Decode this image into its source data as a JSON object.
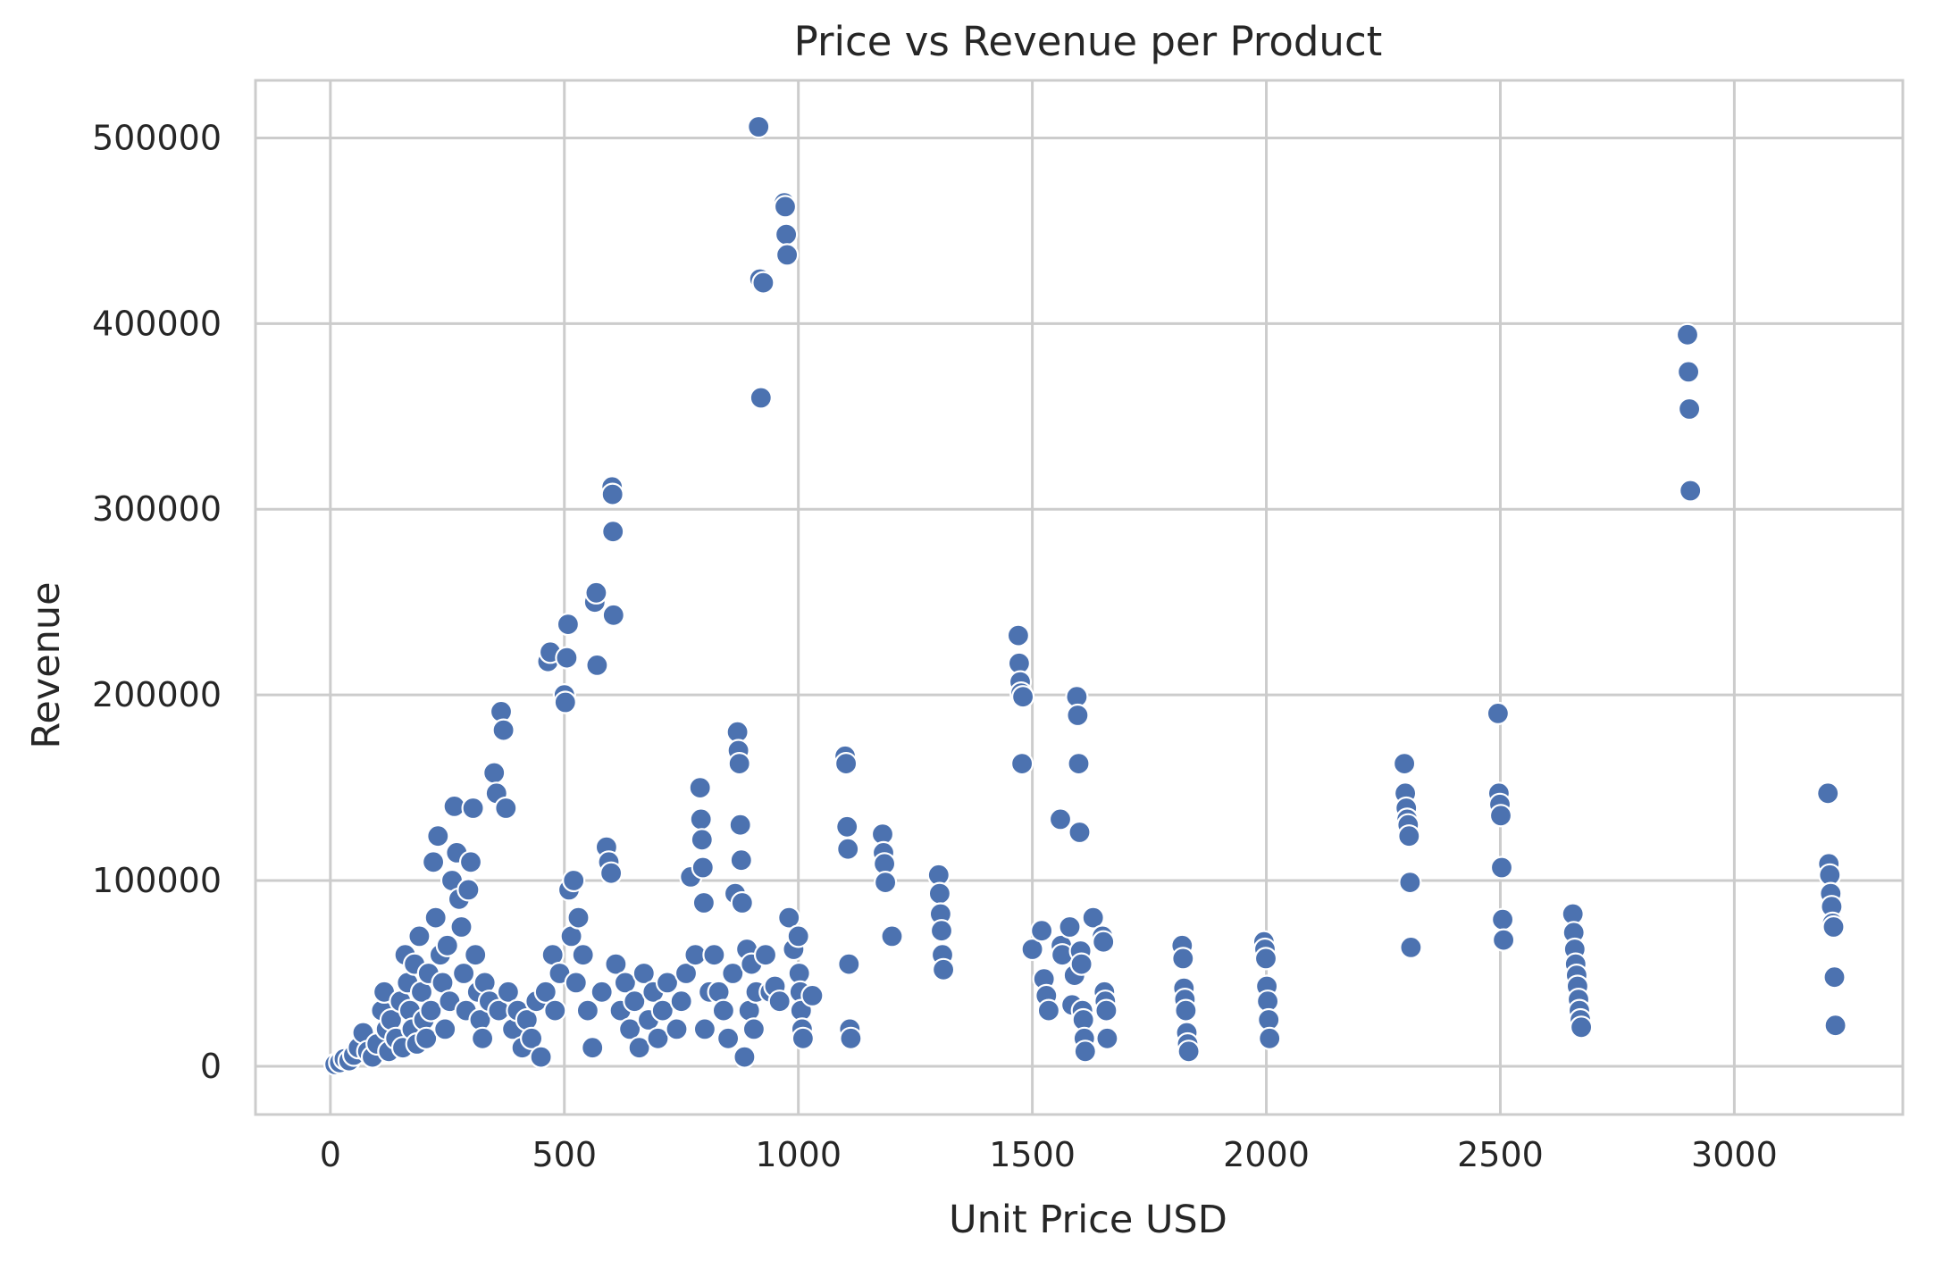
{
  "chart_data": {
    "type": "scatter",
    "title": "Price vs Revenue per Product",
    "xlabel": "Unit Price USD",
    "ylabel": "Revenue",
    "xlim": [
      -160,
      3360
    ],
    "ylim": [
      -26000,
      531000
    ],
    "xticks": [
      0,
      500,
      1000,
      1500,
      2000,
      2500,
      3000
    ],
    "yticks": [
      0,
      100000,
      200000,
      300000,
      400000,
      500000
    ],
    "xtick_labels": [
      "0",
      "500",
      "1000",
      "1500",
      "2000",
      "2500",
      "3000"
    ],
    "ytick_labels": [
      "0",
      "100000",
      "200000",
      "300000",
      "400000",
      "500000"
    ],
    "grid": true,
    "legend": "none",
    "point_color": "#4c72b0",
    "points": [
      [
        10,
        1000
      ],
      [
        20,
        2000
      ],
      [
        30,
        4000
      ],
      [
        40,
        3000
      ],
      [
        50,
        6000
      ],
      [
        60,
        10000
      ],
      [
        70,
        18000
      ],
      [
        80,
        8000
      ],
      [
        90,
        5000
      ],
      [
        100,
        12000
      ],
      [
        110,
        30000
      ],
      [
        115,
        40000
      ],
      [
        120,
        20000
      ],
      [
        125,
        8000
      ],
      [
        130,
        25000
      ],
      [
        140,
        15000
      ],
      [
        150,
        35000
      ],
      [
        155,
        10000
      ],
      [
        160,
        60000
      ],
      [
        165,
        45000
      ],
      [
        170,
        30000
      ],
      [
        175,
        20000
      ],
      [
        180,
        55000
      ],
      [
        185,
        12000
      ],
      [
        190,
        70000
      ],
      [
        195,
        40000
      ],
      [
        200,
        25000
      ],
      [
        205,
        15000
      ],
      [
        210,
        50000
      ],
      [
        215,
        30000
      ],
      [
        220,
        110000
      ],
      [
        225,
        80000
      ],
      [
        230,
        124000
      ],
      [
        235,
        60000
      ],
      [
        240,
        45000
      ],
      [
        245,
        20000
      ],
      [
        250,
        65000
      ],
      [
        255,
        35000
      ],
      [
        260,
        100000
      ],
      [
        265,
        140000
      ],
      [
        270,
        115000
      ],
      [
        275,
        90000
      ],
      [
        280,
        75000
      ],
      [
        285,
        50000
      ],
      [
        290,
        30000
      ],
      [
        295,
        95000
      ],
      [
        300,
        110000
      ],
      [
        305,
        139000
      ],
      [
        310,
        60000
      ],
      [
        315,
        40000
      ],
      [
        320,
        25000
      ],
      [
        325,
        15000
      ],
      [
        330,
        45000
      ],
      [
        340,
        35000
      ],
      [
        350,
        158000
      ],
      [
        355,
        147000
      ],
      [
        360,
        30000
      ],
      [
        365,
        191000
      ],
      [
        370,
        181000
      ],
      [
        375,
        139000
      ],
      [
        380,
        40000
      ],
      [
        390,
        20000
      ],
      [
        400,
        30000
      ],
      [
        410,
        10000
      ],
      [
        420,
        25000
      ],
      [
        430,
        15000
      ],
      [
        440,
        35000
      ],
      [
        450,
        5000
      ],
      [
        460,
        40000
      ],
      [
        465,
        218000
      ],
      [
        470,
        223000
      ],
      [
        475,
        60000
      ],
      [
        480,
        30000
      ],
      [
        490,
        50000
      ],
      [
        500,
        200000
      ],
      [
        502,
        196000
      ],
      [
        505,
        220000
      ],
      [
        508,
        238000
      ],
      [
        510,
        95000
      ],
      [
        515,
        70000
      ],
      [
        520,
        100000
      ],
      [
        525,
        45000
      ],
      [
        530,
        80000
      ],
      [
        540,
        60000
      ],
      [
        550,
        30000
      ],
      [
        560,
        10000
      ],
      [
        565,
        250000
      ],
      [
        568,
        255000
      ],
      [
        570,
        216000
      ],
      [
        580,
        40000
      ],
      [
        590,
        118000
      ],
      [
        595,
        110000
      ],
      [
        600,
        104000
      ],
      [
        602,
        312000
      ],
      [
        603,
        308000
      ],
      [
        604,
        288000
      ],
      [
        605,
        243000
      ],
      [
        610,
        55000
      ],
      [
        620,
        30000
      ],
      [
        630,
        45000
      ],
      [
        640,
        20000
      ],
      [
        650,
        35000
      ],
      [
        660,
        10000
      ],
      [
        670,
        50000
      ],
      [
        680,
        25000
      ],
      [
        690,
        40000
      ],
      [
        700,
        15000
      ],
      [
        710,
        30000
      ],
      [
        720,
        45000
      ],
      [
        740,
        20000
      ],
      [
        750,
        35000
      ],
      [
        760,
        50000
      ],
      [
        770,
        102000
      ],
      [
        780,
        60000
      ],
      [
        790,
        150000
      ],
      [
        792,
        133000
      ],
      [
        794,
        122000
      ],
      [
        796,
        107000
      ],
      [
        798,
        88000
      ],
      [
        800,
        20000
      ],
      [
        810,
        40000
      ],
      [
        820,
        60000
      ],
      [
        830,
        40000
      ],
      [
        840,
        30000
      ],
      [
        850,
        15000
      ],
      [
        860,
        50000
      ],
      [
        865,
        93000
      ],
      [
        870,
        180000
      ],
      [
        872,
        170000
      ],
      [
        874,
        163000
      ],
      [
        876,
        130000
      ],
      [
        878,
        111000
      ],
      [
        880,
        88000
      ],
      [
        885,
        5000
      ],
      [
        890,
        63000
      ],
      [
        895,
        30000
      ],
      [
        900,
        55000
      ],
      [
        905,
        20000
      ],
      [
        910,
        40000
      ],
      [
        915,
        506000
      ],
      [
        918,
        424000
      ],
      [
        920,
        360000
      ],
      [
        925,
        422000
      ],
      [
        930,
        60000
      ],
      [
        940,
        40000
      ],
      [
        950,
        43000
      ],
      [
        960,
        35000
      ],
      [
        970,
        465000
      ],
      [
        972,
        463000
      ],
      [
        974,
        448000
      ],
      [
        976,
        437000
      ],
      [
        980,
        80000
      ],
      [
        990,
        63000
      ],
      [
        1000,
        70000
      ],
      [
        1002,
        50000
      ],
      [
        1004,
        40000
      ],
      [
        1006,
        30000
      ],
      [
        1008,
        20000
      ],
      [
        1010,
        15000
      ],
      [
        1030,
        38000
      ],
      [
        1100,
        167000
      ],
      [
        1102,
        163000
      ],
      [
        1104,
        129000
      ],
      [
        1106,
        117000
      ],
      [
        1108,
        55000
      ],
      [
        1110,
        20000
      ],
      [
        1112,
        15000
      ],
      [
        1180,
        125000
      ],
      [
        1182,
        115000
      ],
      [
        1184,
        109000
      ],
      [
        1186,
        99000
      ],
      [
        1200,
        70000
      ],
      [
        1300,
        103000
      ],
      [
        1302,
        93000
      ],
      [
        1304,
        82000
      ],
      [
        1306,
        73000
      ],
      [
        1308,
        60000
      ],
      [
        1310,
        52000
      ],
      [
        1470,
        232000
      ],
      [
        1472,
        217000
      ],
      [
        1474,
        207000
      ],
      [
        1476,
        201000
      ],
      [
        1478,
        163000
      ],
      [
        1480,
        199000
      ],
      [
        1500,
        63000
      ],
      [
        1520,
        73000
      ],
      [
        1525,
        47000
      ],
      [
        1530,
        38000
      ],
      [
        1535,
        30000
      ],
      [
        1560,
        133000
      ],
      [
        1562,
        65000
      ],
      [
        1564,
        60000
      ],
      [
        1580,
        75000
      ],
      [
        1585,
        33000
      ],
      [
        1590,
        49000
      ],
      [
        1595,
        199000
      ],
      [
        1597,
        189000
      ],
      [
        1599,
        163000
      ],
      [
        1601,
        126000
      ],
      [
        1603,
        62000
      ],
      [
        1605,
        55000
      ],
      [
        1607,
        30000
      ],
      [
        1609,
        25000
      ],
      [
        1611,
        15000
      ],
      [
        1613,
        8000
      ],
      [
        1630,
        80000
      ],
      [
        1650,
        70000
      ],
      [
        1652,
        67000
      ],
      [
        1654,
        40000
      ],
      [
        1656,
        35000
      ],
      [
        1658,
        30000
      ],
      [
        1660,
        15000
      ],
      [
        1820,
        65000
      ],
      [
        1822,
        58000
      ],
      [
        1824,
        42000
      ],
      [
        1826,
        36000
      ],
      [
        1828,
        30000
      ],
      [
        1830,
        18000
      ],
      [
        1832,
        12000
      ],
      [
        1834,
        8000
      ],
      [
        1995,
        67000
      ],
      [
        1997,
        63000
      ],
      [
        1999,
        58000
      ],
      [
        2001,
        43000
      ],
      [
        2003,
        35000
      ],
      [
        2005,
        25000
      ],
      [
        2007,
        15000
      ],
      [
        2295,
        163000
      ],
      [
        2297,
        147000
      ],
      [
        2299,
        139000
      ],
      [
        2301,
        133000
      ],
      [
        2303,
        130000
      ],
      [
        2305,
        124000
      ],
      [
        2307,
        99000
      ],
      [
        2309,
        64000
      ],
      [
        2495,
        190000
      ],
      [
        2497,
        147000
      ],
      [
        2499,
        141000
      ],
      [
        2501,
        135000
      ],
      [
        2503,
        107000
      ],
      [
        2505,
        79000
      ],
      [
        2507,
        68000
      ],
      [
        2655,
        82000
      ],
      [
        2657,
        72000
      ],
      [
        2659,
        63000
      ],
      [
        2661,
        55000
      ],
      [
        2663,
        49000
      ],
      [
        2665,
        43000
      ],
      [
        2667,
        36000
      ],
      [
        2669,
        30000
      ],
      [
        2671,
        25000
      ],
      [
        2673,
        21000
      ],
      [
        2900,
        394000
      ],
      [
        2902,
        374000
      ],
      [
        2904,
        354000
      ],
      [
        2906,
        310000
      ],
      [
        3200,
        147000
      ],
      [
        3202,
        109000
      ],
      [
        3204,
        103000
      ],
      [
        3206,
        93000
      ],
      [
        3208,
        86000
      ],
      [
        3210,
        77000
      ],
      [
        3212,
        75000
      ],
      [
        3214,
        48000
      ],
      [
        3216,
        22000
      ]
    ]
  }
}
